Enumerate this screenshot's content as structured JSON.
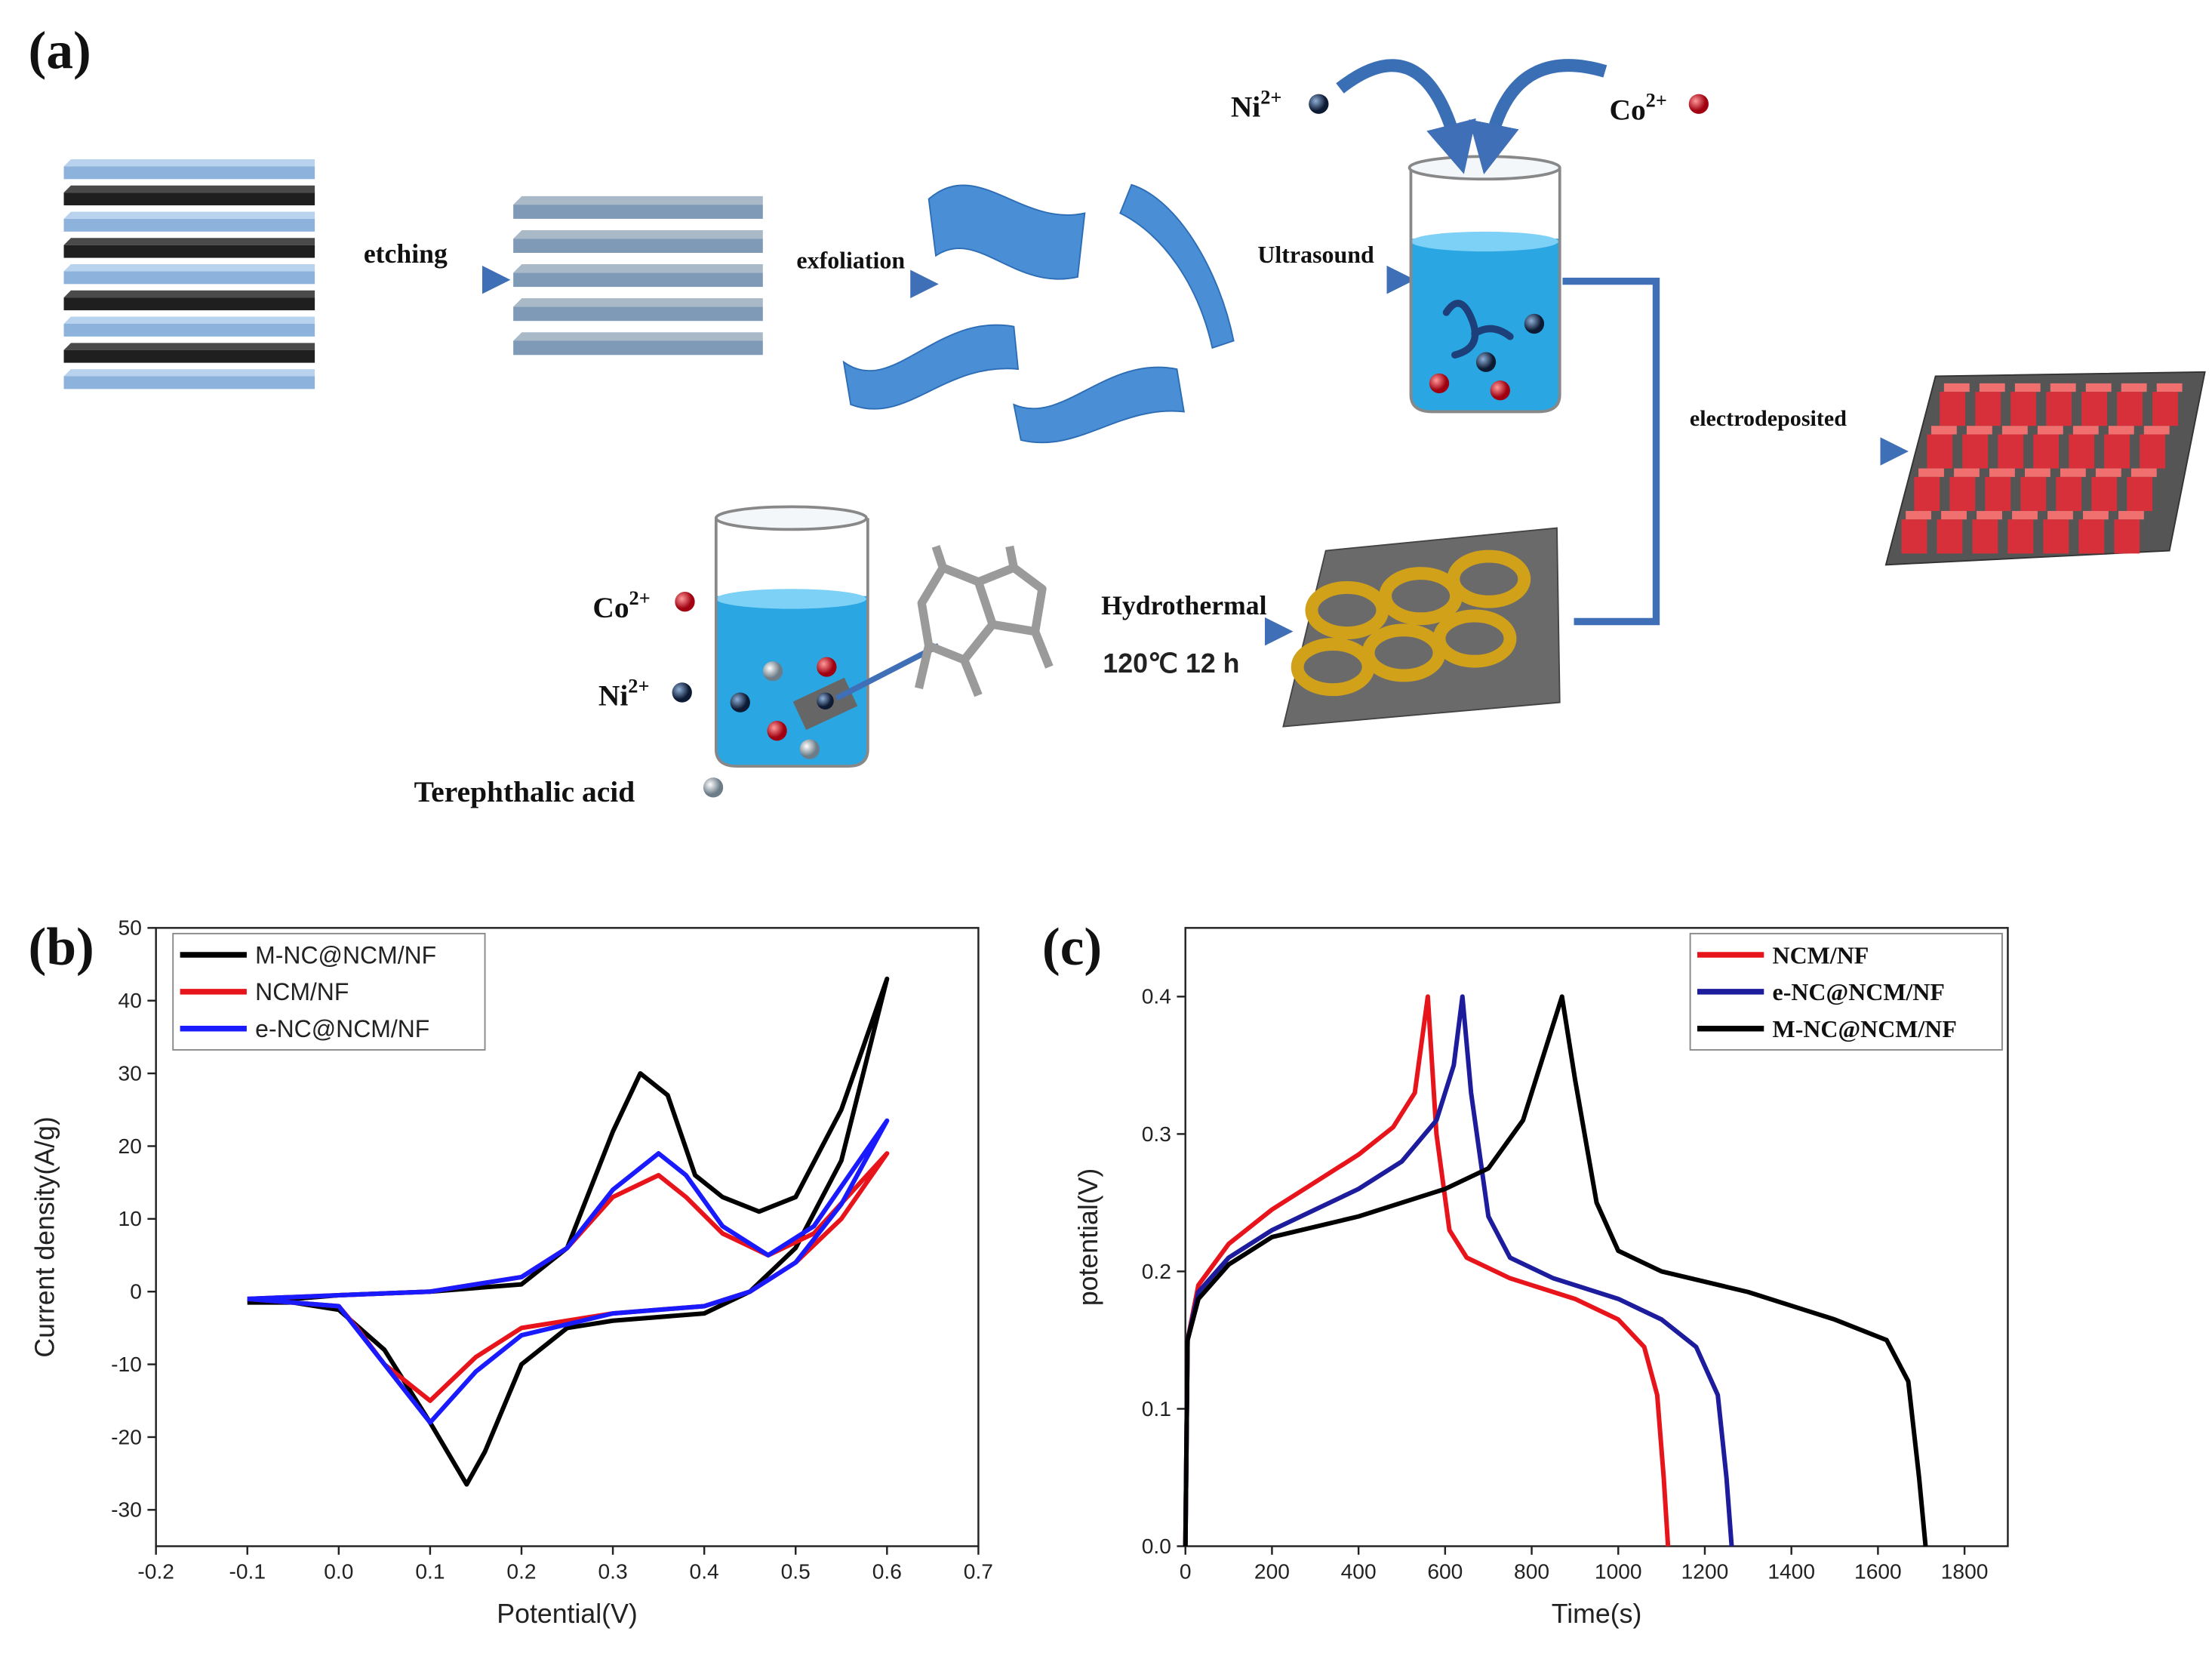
{
  "diagram": {
    "panel_label": "(a)",
    "steps": [
      "etching",
      "exfoliation",
      "Ultrasound",
      "electrodeposited",
      "Hydrothermal"
    ],
    "condition": "120℃ 12 h",
    "ions": [
      {
        "symbol": "Ni",
        "charge": "2+"
      },
      {
        "symbol": "Co",
        "charge": "2+"
      },
      {
        "symbol": "Co",
        "charge": "2+"
      },
      {
        "symbol": "Ni",
        "charge": "2+"
      }
    ],
    "reagent": "Terephthalic acid"
  },
  "chart_data": [
    {
      "type": "line",
      "panel_label": "(b)",
      "xlabel": "Potential(V)",
      "ylabel": "Current density(A/g)",
      "legend": "upper left",
      "xlim": [
        -0.2,
        0.7
      ],
      "xticks": [
        -0.2,
        -0.1,
        {
          "value": 0,
          "label": "0.0"
        },
        0.1,
        0.2,
        0.3,
        0.4,
        0.5,
        0.6,
        0.7
      ],
      "ylim": [
        -35,
        50
      ],
      "yticks": [
        -30,
        -20,
        -10,
        0,
        10,
        20,
        30,
        40,
        50
      ],
      "series": [
        {
          "name": "M-NC@NCM/NF",
          "color": "#000000",
          "x": [
            -0.1,
            0,
            0.1,
            0.2,
            0.25,
            0.3,
            0.33,
            0.36,
            0.39,
            0.42,
            0.46,
            0.5,
            0.55,
            0.6,
            0.55,
            0.5,
            0.45,
            0.4,
            0.3,
            0.25,
            0.2,
            0.16,
            0.14,
            0.1,
            0.05,
            0,
            -0.05,
            -0.1
          ],
          "values": [
            -1.5,
            -0.5,
            0,
            1,
            6,
            22,
            30,
            27,
            16,
            13,
            11,
            13,
            25,
            43,
            18,
            6,
            0,
            -3,
            -4,
            -5,
            -10,
            -22,
            -26.5,
            -18,
            -8,
            -2.5,
            -1.5,
            -1.5
          ]
        },
        {
          "name": "NCM/NF",
          "color": "#e8141b",
          "x": [
            -0.1,
            0,
            0.1,
            0.2,
            0.25,
            0.3,
            0.35,
            0.38,
            0.42,
            0.47,
            0.52,
            0.6,
            0.55,
            0.5,
            0.45,
            0.4,
            0.3,
            0.2,
            0.15,
            0.1,
            0.05,
            0.02,
            0,
            -0.1
          ],
          "values": [
            -1,
            -0.5,
            0,
            2,
            6,
            13,
            16,
            13,
            8,
            5,
            8,
            19,
            10,
            4,
            0,
            -2,
            -3,
            -5,
            -9,
            -15,
            -10,
            -5,
            -2,
            -1
          ]
        },
        {
          "name": "e-NC@NCM/NF",
          "color": "#1a1aff",
          "x": [
            -0.1,
            0,
            0.1,
            0.2,
            0.25,
            0.3,
            0.35,
            0.38,
            0.42,
            0.47,
            0.52,
            0.6,
            0.55,
            0.5,
            0.45,
            0.4,
            0.3,
            0.2,
            0.15,
            0.1,
            0.05,
            0,
            -0.1
          ],
          "values": [
            -1,
            -0.5,
            0,
            2,
            6,
            14,
            19,
            16,
            9,
            5,
            9,
            23.5,
            12,
            4,
            0,
            -2,
            -3,
            -6,
            -11,
            -18,
            -10,
            -2,
            -1
          ]
        }
      ]
    },
    {
      "type": "line",
      "panel_label": "(c)",
      "xlabel": "Time(s)",
      "ylabel": "potential(V)",
      "legend": "upper right",
      "xlim": [
        0,
        1900
      ],
      "xticks": [
        0,
        200,
        400,
        600,
        800,
        1000,
        1200,
        1400,
        1600,
        1800
      ],
      "ylim": [
        0,
        0.45
      ],
      "yticks": [
        {
          "value": 0,
          "label": "0.0"
        },
        0.1,
        0.2,
        0.3,
        0.4
      ],
      "series": [
        {
          "name": "NCM/NF",
          "color": "#e8141b",
          "x": [
            0,
            5,
            30,
            100,
            200,
            300,
            400,
            480,
            530,
            560,
            580,
            610,
            650,
            750,
            900,
            1000,
            1060,
            1090,
            1105,
            1115
          ],
          "values": [
            0,
            0.15,
            0.19,
            0.22,
            0.245,
            0.265,
            0.285,
            0.305,
            0.33,
            0.4,
            0.3,
            0.23,
            0.21,
            0.195,
            0.18,
            0.165,
            0.145,
            0.11,
            0.05,
            0
          ]
        },
        {
          "name": "e-NC@NCM/NF",
          "color": "#1c1c9c",
          "x": [
            0,
            5,
            30,
            100,
            200,
            300,
            400,
            500,
            580,
            620,
            640,
            660,
            700,
            750,
            850,
            1000,
            1100,
            1180,
            1230,
            1250,
            1262
          ],
          "values": [
            0,
            0.15,
            0.185,
            0.21,
            0.23,
            0.245,
            0.26,
            0.28,
            0.31,
            0.35,
            0.4,
            0.33,
            0.24,
            0.21,
            0.195,
            0.18,
            0.165,
            0.145,
            0.11,
            0.05,
            0
          ]
        },
        {
          "name": "M-NC@NCM/NF",
          "color": "#000000",
          "x": [
            0,
            5,
            30,
            100,
            200,
            400,
            600,
            700,
            780,
            830,
            870,
            900,
            950,
            1000,
            1100,
            1300,
            1500,
            1620,
            1670,
            1695,
            1710
          ],
          "values": [
            0,
            0.15,
            0.18,
            0.205,
            0.225,
            0.24,
            0.26,
            0.275,
            0.31,
            0.36,
            0.4,
            0.34,
            0.25,
            0.215,
            0.2,
            0.185,
            0.165,
            0.15,
            0.12,
            0.05,
            0
          ]
        }
      ]
    }
  ]
}
